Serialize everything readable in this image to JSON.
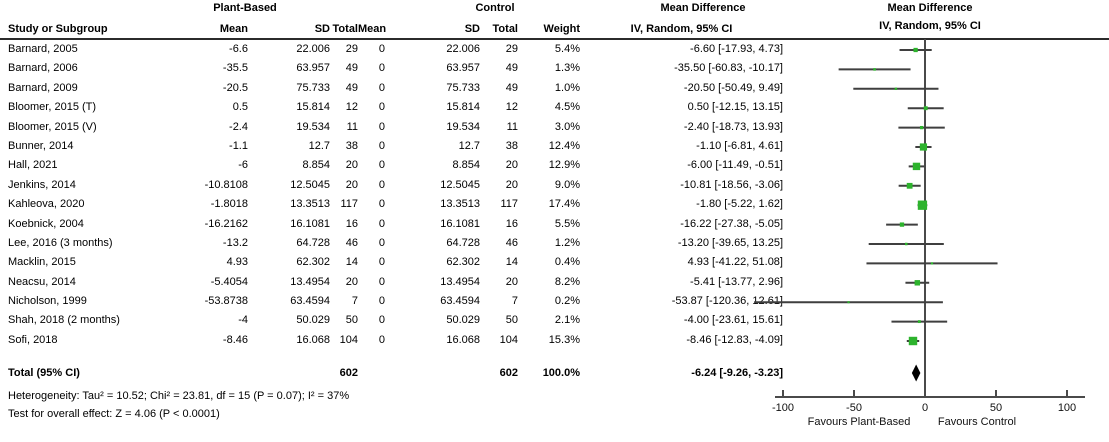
{
  "table": {
    "group_headers": {
      "plant_based": "Plant-Based",
      "control": "Control"
    },
    "column_headers": {
      "study": "Study or Subgroup",
      "mean": "Mean",
      "sd": "SD",
      "total": "Total",
      "weight": "Weight",
      "md_ci": "IV, Random, 95% CI"
    },
    "md_text_header": {
      "line1": "Mean Difference",
      "line2": "IV, Random, 95% CI"
    },
    "md_plot_header": {
      "line1": "Mean Difference",
      "line2": "IV, Random, 95% CI"
    },
    "total_row": {
      "label": "Total (95% CI)",
      "pb_total": "602",
      "c_total": "602",
      "weight": "100.0%",
      "md_ci": "-6.24 [-9.26, -3.23]"
    },
    "footnotes": {
      "heterogeneity": "Heterogeneity: Tau² = 10.52; Chi² = 23.81, df = 15 (P = 0.07); I² = 37%",
      "overall_effect": "Test for overall effect: Z = 4.06 (P < 0.0001)"
    }
  },
  "chart_data": {
    "type": "forest",
    "effect_measure": "Mean Difference",
    "model": "IV, Random, 95% CI",
    "x_axis": {
      "range": [
        -100,
        100
      ],
      "ticks": [
        -100,
        -50,
        0,
        50,
        100
      ],
      "label_left": "Favours Plant-Based",
      "label_right": "Favours Control"
    },
    "colors": {
      "marker": "#2db32d",
      "ci_line": "#3f3f3f",
      "diamond": "#000000",
      "axis": "#4a4a4a"
    },
    "studies": [
      {
        "name": "Barnard, 2005",
        "pb_mean": "-6.6",
        "pb_sd": "22.006",
        "pb_total": "29",
        "c_mean": "0",
        "c_sd": "22.006",
        "c_total": "29",
        "weight": "5.4%",
        "md_ci": "-6.60 [-17.93, 4.73]",
        "md": -6.6,
        "lo": -17.93,
        "hi": 4.73,
        "w": 5.4
      },
      {
        "name": "Barnard, 2006",
        "pb_mean": "-35.5",
        "pb_sd": "63.957",
        "pb_total": "49",
        "c_mean": "0",
        "c_sd": "63.957",
        "c_total": "49",
        "weight": "1.3%",
        "md_ci": "-35.50 [-60.83, -10.17]",
        "md": -35.5,
        "lo": -60.83,
        "hi": -10.17,
        "w": 1.3
      },
      {
        "name": "Barnard, 2009",
        "pb_mean": "-20.5",
        "pb_sd": "75.733",
        "pb_total": "49",
        "c_mean": "0",
        "c_sd": "75.733",
        "c_total": "49",
        "weight": "1.0%",
        "md_ci": "-20.50 [-50.49, 9.49]",
        "md": -20.5,
        "lo": -50.49,
        "hi": 9.49,
        "w": 1.0
      },
      {
        "name": "Bloomer, 2015 (T)",
        "pb_mean": "0.5",
        "pb_sd": "15.814",
        "pb_total": "12",
        "c_mean": "0",
        "c_sd": "15.814",
        "c_total": "12",
        "weight": "4.5%",
        "md_ci": "0.50 [-12.15, 13.15]",
        "md": 0.5,
        "lo": -12.15,
        "hi": 13.15,
        "w": 4.5
      },
      {
        "name": "Bloomer, 2015 (V)",
        "pb_mean": "-2.4",
        "pb_sd": "19.534",
        "pb_total": "11",
        "c_mean": "0",
        "c_sd": "19.534",
        "c_total": "11",
        "weight": "3.0%",
        "md_ci": "-2.40 [-18.73, 13.93]",
        "md": -2.4,
        "lo": -18.73,
        "hi": 13.93,
        "w": 3.0
      },
      {
        "name": "Bunner, 2014",
        "pb_mean": "-1.1",
        "pb_sd": "12.7",
        "pb_total": "38",
        "c_mean": "0",
        "c_sd": "12.7",
        "c_total": "38",
        "weight": "12.4%",
        "md_ci": "-1.10 [-6.81, 4.61]",
        "md": -1.1,
        "lo": -6.81,
        "hi": 4.61,
        "w": 12.4
      },
      {
        "name": "Hall, 2021",
        "pb_mean": "-6",
        "pb_sd": "8.854",
        "pb_total": "20",
        "c_mean": "0",
        "c_sd": "8.854",
        "c_total": "20",
        "weight": "12.9%",
        "md_ci": "-6.00 [-11.49, -0.51]",
        "md": -6.0,
        "lo": -11.49,
        "hi": -0.51,
        "w": 12.9
      },
      {
        "name": "Jenkins, 2014",
        "pb_mean": "-10.8108",
        "pb_sd": "12.5045",
        "pb_total": "20",
        "c_mean": "0",
        "c_sd": "12.5045",
        "c_total": "20",
        "weight": "9.0%",
        "md_ci": "-10.81 [-18.56, -3.06]",
        "md": -10.81,
        "lo": -18.56,
        "hi": -3.06,
        "w": 9.0
      },
      {
        "name": "Kahleova, 2020",
        "pb_mean": "-1.8018",
        "pb_sd": "13.3513",
        "pb_total": "117",
        "c_mean": "0",
        "c_sd": "13.3513",
        "c_total": "117",
        "weight": "17.4%",
        "md_ci": "-1.80 [-5.22, 1.62]",
        "md": -1.8,
        "lo": -5.22,
        "hi": 1.62,
        "w": 17.4
      },
      {
        "name": "Koebnick, 2004",
        "pb_mean": "-16.2162",
        "pb_sd": "16.1081",
        "pb_total": "16",
        "c_mean": "0",
        "c_sd": "16.1081",
        "c_total": "16",
        "weight": "5.5%",
        "md_ci": "-16.22 [-27.38, -5.05]",
        "md": -16.22,
        "lo": -27.38,
        "hi": -5.05,
        "w": 5.5
      },
      {
        "name": "Lee, 2016 (3 months)",
        "pb_mean": "-13.2",
        "pb_sd": "64.728",
        "pb_total": "46",
        "c_mean": "0",
        "c_sd": "64.728",
        "c_total": "46",
        "weight": "1.2%",
        "md_ci": "-13.20 [-39.65, 13.25]",
        "md": -13.2,
        "lo": -39.65,
        "hi": 13.25,
        "w": 1.2
      },
      {
        "name": "Macklin, 2015",
        "pb_mean": "4.93",
        "pb_sd": "62.302",
        "pb_total": "14",
        "c_mean": "0",
        "c_sd": "62.302",
        "c_total": "14",
        "weight": "0.4%",
        "md_ci": "4.93 [-41.22, 51.08]",
        "md": 4.93,
        "lo": -41.22,
        "hi": 51.08,
        "w": 0.4
      },
      {
        "name": "Neacsu, 2014",
        "pb_mean": "-5.4054",
        "pb_sd": "13.4954",
        "pb_total": "20",
        "c_mean": "0",
        "c_sd": "13.4954",
        "c_total": "20",
        "weight": "8.2%",
        "md_ci": "-5.41 [-13.77, 2.96]",
        "md": -5.41,
        "lo": -13.77,
        "hi": 2.96,
        "w": 8.2
      },
      {
        "name": "Nicholson, 1999",
        "pb_mean": "-53.8738",
        "pb_sd": "63.4594",
        "pb_total": "7",
        "c_mean": "0",
        "c_sd": "63.4594",
        "c_total": "7",
        "weight": "0.2%",
        "md_ci": "-53.87 [-120.36, 12.61]",
        "md": -53.87,
        "lo": -120.36,
        "hi": 12.61,
        "w": 0.2
      },
      {
        "name": "Shah, 2018 (2 months)",
        "pb_mean": "-4",
        "pb_sd": "50.029",
        "pb_total": "50",
        "c_mean": "0",
        "c_sd": "50.029",
        "c_total": "50",
        "weight": "2.1%",
        "md_ci": "-4.00 [-23.61, 15.61]",
        "md": -4.0,
        "lo": -23.61,
        "hi": 15.61,
        "w": 2.1
      },
      {
        "name": "Sofi, 2018",
        "pb_mean": "-8.46",
        "pb_sd": "16.068",
        "pb_total": "104",
        "c_mean": "0",
        "c_sd": "16.068",
        "c_total": "104",
        "weight": "15.3%",
        "md_ci": "-8.46 [-12.83, -4.09]",
        "md": -8.46,
        "lo": -12.83,
        "hi": -4.09,
        "w": 15.3
      }
    ],
    "total": {
      "md": -6.24,
      "lo": -9.26,
      "hi": -3.23,
      "n_plant_based": 602,
      "n_control": 602,
      "weight_pct": 100.0
    },
    "heterogeneity": {
      "tau2": 10.52,
      "chi2": 23.81,
      "df": 15,
      "p": 0.07,
      "i2_pct": 37
    },
    "overall_effect": {
      "z": 4.06,
      "p": "< 0.0001"
    }
  }
}
